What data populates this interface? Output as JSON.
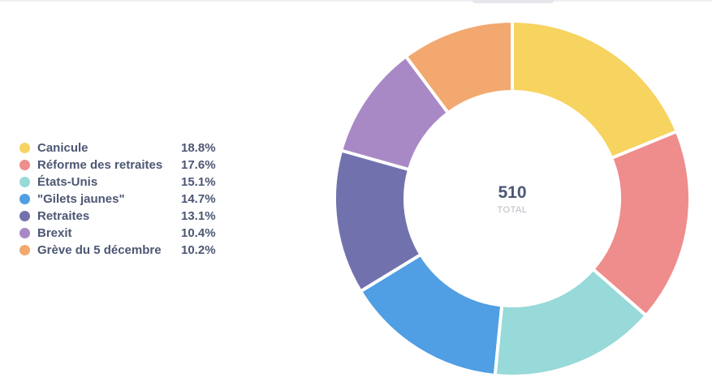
{
  "chart_data": {
    "type": "pie",
    "categories": [
      "Canicule",
      "Réforme des retraites",
      "États-Unis",
      "\"Gilets jaunes\"",
      "Retraites",
      "Brexit",
      "Grève du 5 décembre"
    ],
    "values": [
      18.8,
      17.6,
      15.1,
      14.7,
      13.1,
      10.4,
      10.2
    ],
    "value_labels": [
      "18.8%",
      "17.6%",
      "15.1%",
      "14.7%",
      "13.1%",
      "10.4%",
      "10.2%"
    ],
    "colors": [
      "#F7D35F",
      "#EF8C8C",
      "#98D9D9",
      "#509EE3",
      "#7172AD",
      "#A989C5",
      "#F2A86F"
    ],
    "total_value": "510",
    "total_label": "TOTAL",
    "legend_position": "left",
    "donut": true
  }
}
